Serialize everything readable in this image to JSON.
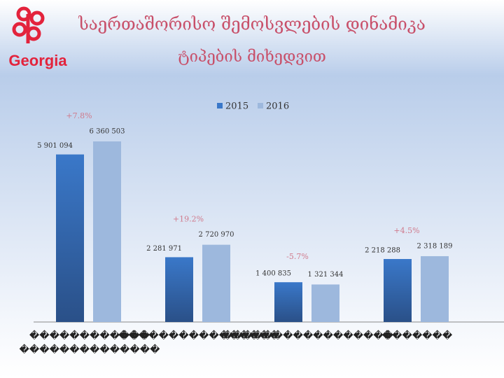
{
  "chart_data": {
    "type": "bar",
    "logo_text": "Georgia",
    "title": "საერთაშორისო შემოსვლების დინამიკა",
    "subtitle": "ტიპების მიხედვით",
    "categories": [
      "������������ ��������������",
      "����������������",
      "�����������������",
      "�������"
    ],
    "series": [
      {
        "name": "2015",
        "color": "#3a78c9",
        "values": [
          5901094,
          2281971,
          1400835,
          2218288
        ],
        "value_labels": [
          "5 901 094",
          "2 281 971",
          "1 400 835",
          "2 218 288"
        ]
      },
      {
        "name": "2016",
        "color": "#9db8dd",
        "values": [
          6360503,
          2720970,
          1321344,
          2318189
        ],
        "value_labels": [
          "6 360 503",
          "2 720 970",
          "1 321 344",
          "2 318 189"
        ]
      }
    ],
    "annotations": [
      "+7.8%",
      "+19.2%",
      "-5.7%",
      "+4.5%"
    ],
    "legend": "top"
  }
}
